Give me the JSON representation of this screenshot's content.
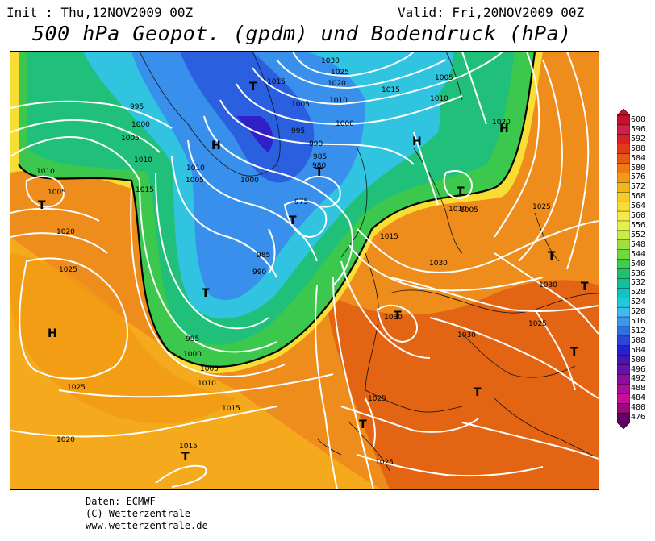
{
  "header": {
    "init": "Init : Thu,12NOV2009 00Z",
    "valid": "Valid: Fri,20NOV2009 00Z",
    "title": "500 hPa Geopot. (gpdm) und Bodendruck (hPa)"
  },
  "credits": {
    "line1": "Daten: ECMWF",
    "line2": "(C) Wetterzentrale",
    "line3": "www.wetterzentrale.de"
  },
  "legend": {
    "values": [
      "600",
      "596",
      "592",
      "588",
      "584",
      "580",
      "576",
      "572",
      "568",
      "564",
      "560",
      "556",
      "552",
      "548",
      "544",
      "540",
      "536",
      "532",
      "528",
      "524",
      "520",
      "516",
      "512",
      "508",
      "504",
      "500",
      "496",
      "492",
      "488",
      "484",
      "480",
      "476"
    ],
    "colors": [
      "#c8102e",
      "#d0214a",
      "#da2020",
      "#e03a18",
      "#e85a10",
      "#ee7a10",
      "#f29a14",
      "#f6b41c",
      "#f8cc24",
      "#f8de34",
      "#f4ec44",
      "#e6f04c",
      "#c8ec44",
      "#a0e03c",
      "#70d83c",
      "#40cc4c",
      "#20c070",
      "#10c09c",
      "#10c4c4",
      "#20c8e0",
      "#40b8f0",
      "#3898ec",
      "#3070e4",
      "#2848d8",
      "#2820c8",
      "#4814b4",
      "#6a10a8",
      "#8c0ca0",
      "#ae0c9c",
      "#cc0c9c",
      "#9a0a78",
      "#660066"
    ]
  },
  "pressure_labels": [
    "1030",
    "1025",
    "1020",
    "1015",
    "1010",
    "1005",
    "1000",
    "995",
    "990",
    "985",
    "980",
    "975"
  ],
  "system_markers": {
    "high": "H",
    "low": "T"
  }
}
